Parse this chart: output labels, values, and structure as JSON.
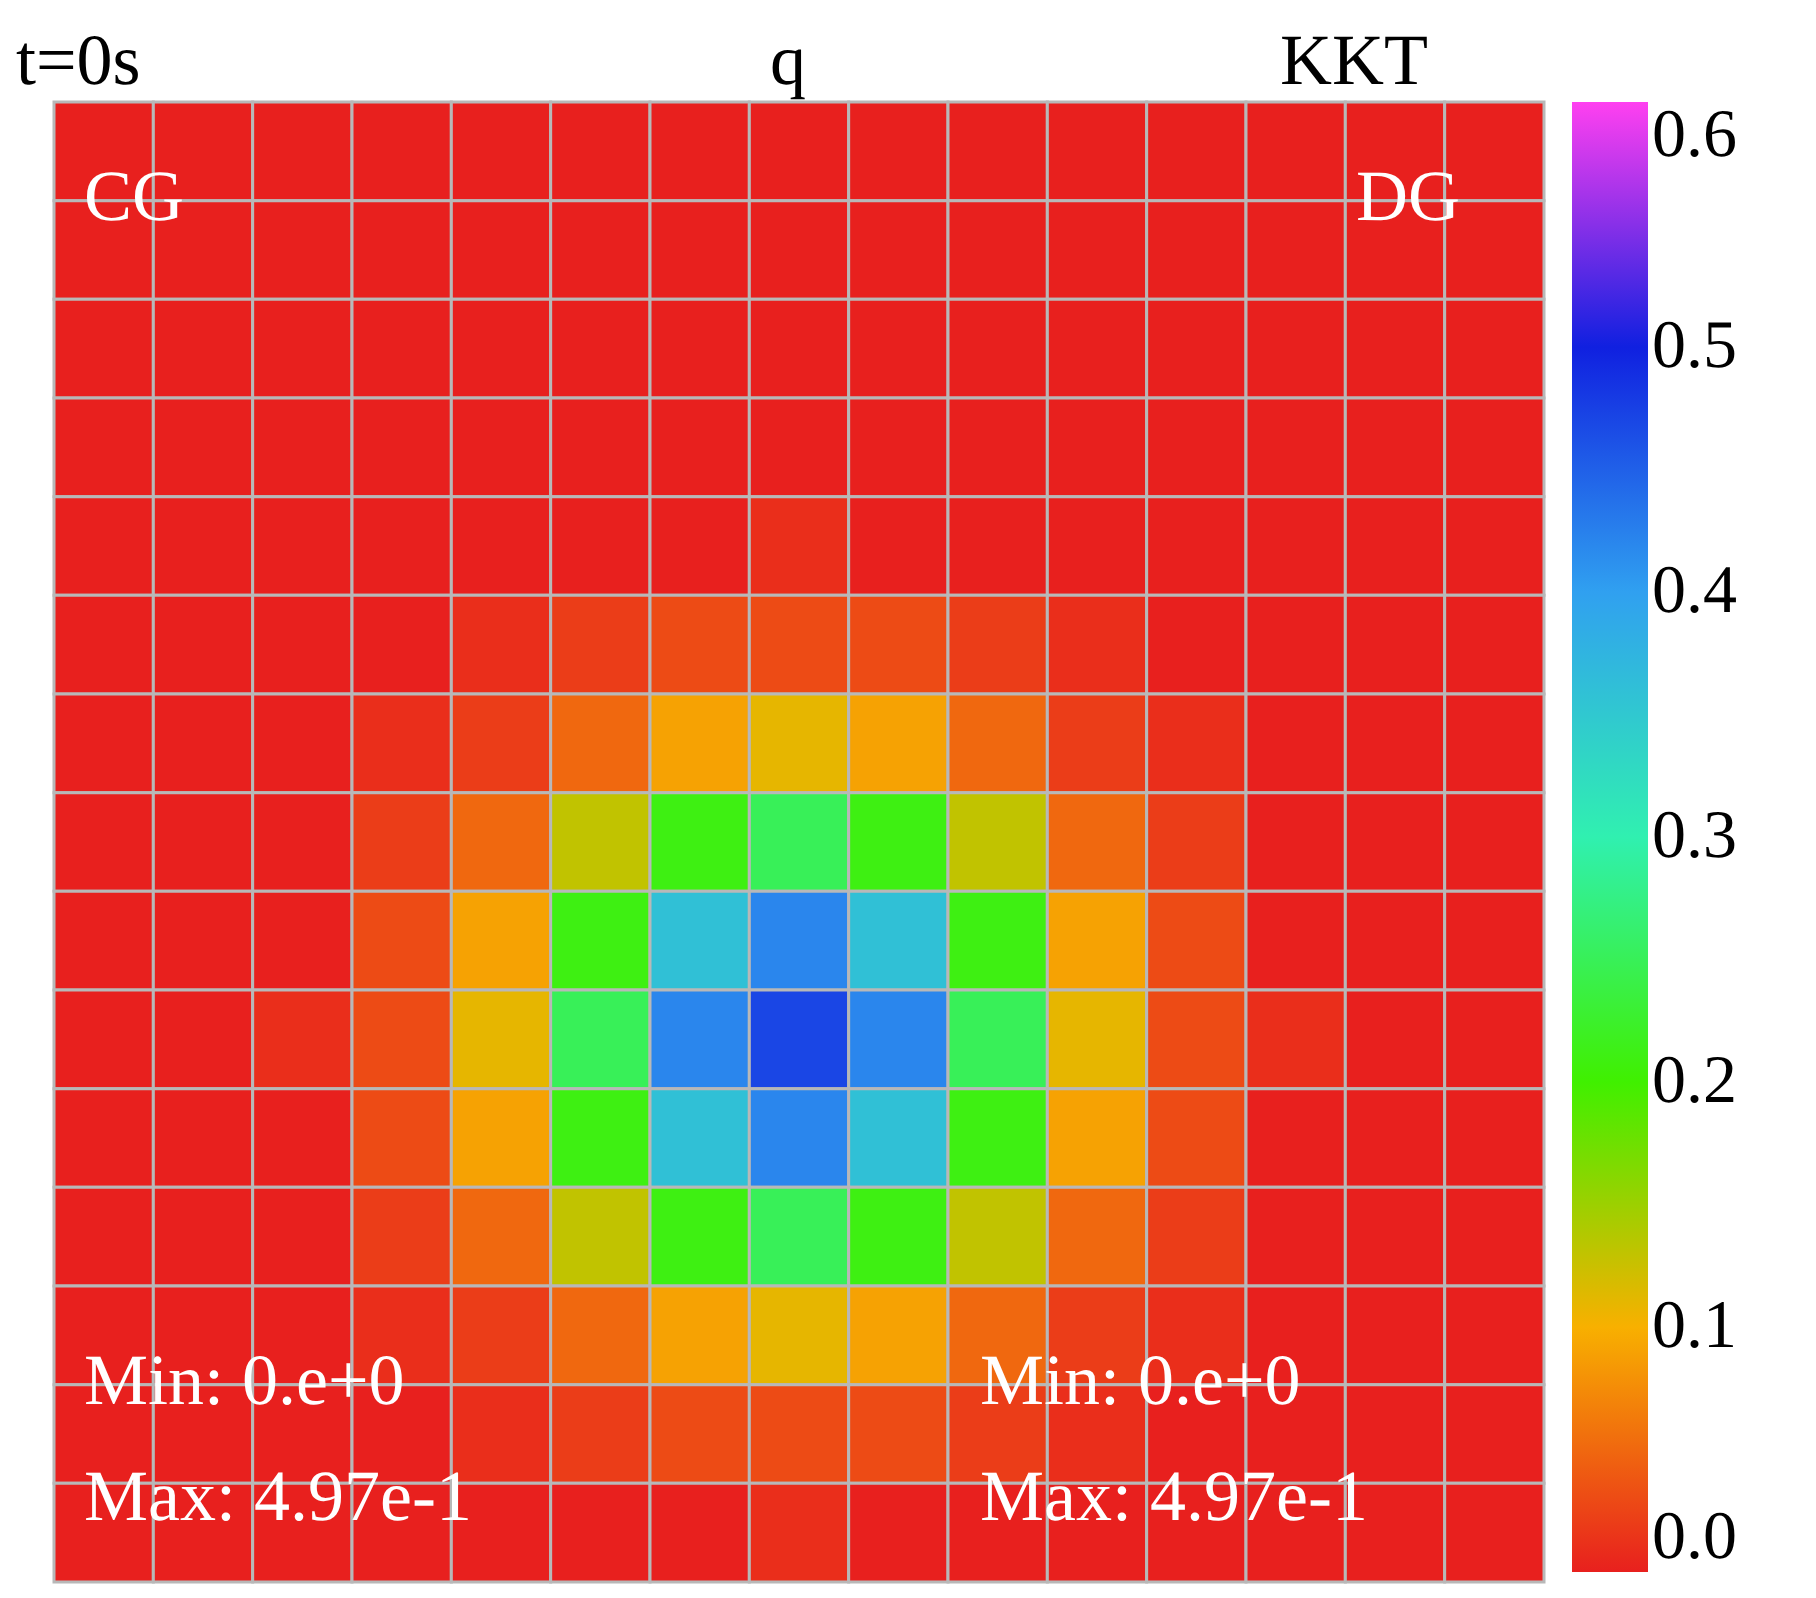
{
  "chart_data": {
    "type": "heatmap",
    "annotations": [
      "t=0s",
      "q",
      "KKT",
      "CG",
      "DG",
      "Min: 0.e+0",
      "Max: 4.97e-1",
      "Min: 0.e+0",
      "Max: 4.97e-1"
    ],
    "categories": [
      null,
      null,
      null,
      null,
      null,
      null,
      null,
      null,
      null,
      null,
      null,
      null,
      null,
      null,
      null
    ],
    "y_categories": [
      null,
      null,
      null,
      null,
      null,
      null,
      null,
      null,
      null,
      null,
      null,
      null,
      null,
      null,
      null
    ],
    "cells": [
      [
        0,
        0,
        0,
        0,
        0,
        0,
        0,
        0,
        0,
        0,
        0,
        0,
        0,
        0,
        0
      ],
      [
        0,
        0,
        0,
        0,
        0,
        0,
        0,
        0,
        0,
        0,
        0,
        0,
        0,
        0,
        0
      ],
      [
        0,
        0,
        0,
        0,
        0,
        0,
        0,
        0,
        0,
        0,
        0,
        0,
        0,
        0,
        0
      ],
      [
        0,
        0,
        0,
        0,
        0,
        0,
        0,
        0,
        0,
        0,
        0,
        0,
        0,
        0,
        0
      ],
      [
        0,
        0,
        0,
        0,
        0,
        0,
        0,
        0.01,
        0,
        0,
        0,
        0,
        0,
        0,
        0
      ],
      [
        0,
        0,
        0,
        0,
        0.01,
        0.02,
        0.03,
        0.03,
        0.03,
        0.02,
        0.01,
        0,
        0,
        0,
        0
      ],
      [
        0,
        0,
        0,
        0.01,
        0.02,
        0.05,
        0.09,
        0.11,
        0.09,
        0.05,
        0.02,
        0.01,
        0,
        0,
        0
      ],
      [
        0,
        0,
        0,
        0.02,
        0.05,
        0.13,
        0.21,
        0.25,
        0.21,
        0.13,
        0.05,
        0.02,
        0,
        0,
        0
      ],
      [
        0,
        0,
        0,
        0.03,
        0.09,
        0.21,
        0.36,
        0.42,
        0.36,
        0.21,
        0.09,
        0.03,
        0,
        0,
        0
      ],
      [
        0,
        0,
        0.01,
        0.03,
        0.11,
        0.25,
        0.42,
        0.47,
        0.42,
        0.25,
        0.11,
        0.03,
        0.01,
        0,
        0
      ],
      [
        0,
        0,
        0,
        0.03,
        0.09,
        0.21,
        0.36,
        0.42,
        0.36,
        0.21,
        0.09,
        0.03,
        0,
        0,
        0
      ],
      [
        0,
        0,
        0,
        0.02,
        0.05,
        0.13,
        0.21,
        0.25,
        0.21,
        0.13,
        0.05,
        0.02,
        0,
        0,
        0
      ],
      [
        0,
        0,
        0,
        0.01,
        0.02,
        0.05,
        0.09,
        0.11,
        0.09,
        0.05,
        0.02,
        0.01,
        0,
        0,
        0
      ],
      [
        0,
        0,
        0,
        0,
        0.01,
        0.02,
        0.03,
        0.03,
        0.03,
        0.02,
        0.01,
        0,
        0,
        0,
        0
      ],
      [
        0,
        0,
        0,
        0,
        0,
        0,
        0,
        0.01,
        0,
        0,
        0,
        0,
        0,
        0,
        0
      ]
    ],
    "clim": [
      0,
      0.6
    ],
    "cticks": [
      {
        "value": 0,
        "label": "0.0"
      },
      0.1,
      0.2,
      0.3,
      0.4,
      0.5,
      0.6
    ]
  }
}
